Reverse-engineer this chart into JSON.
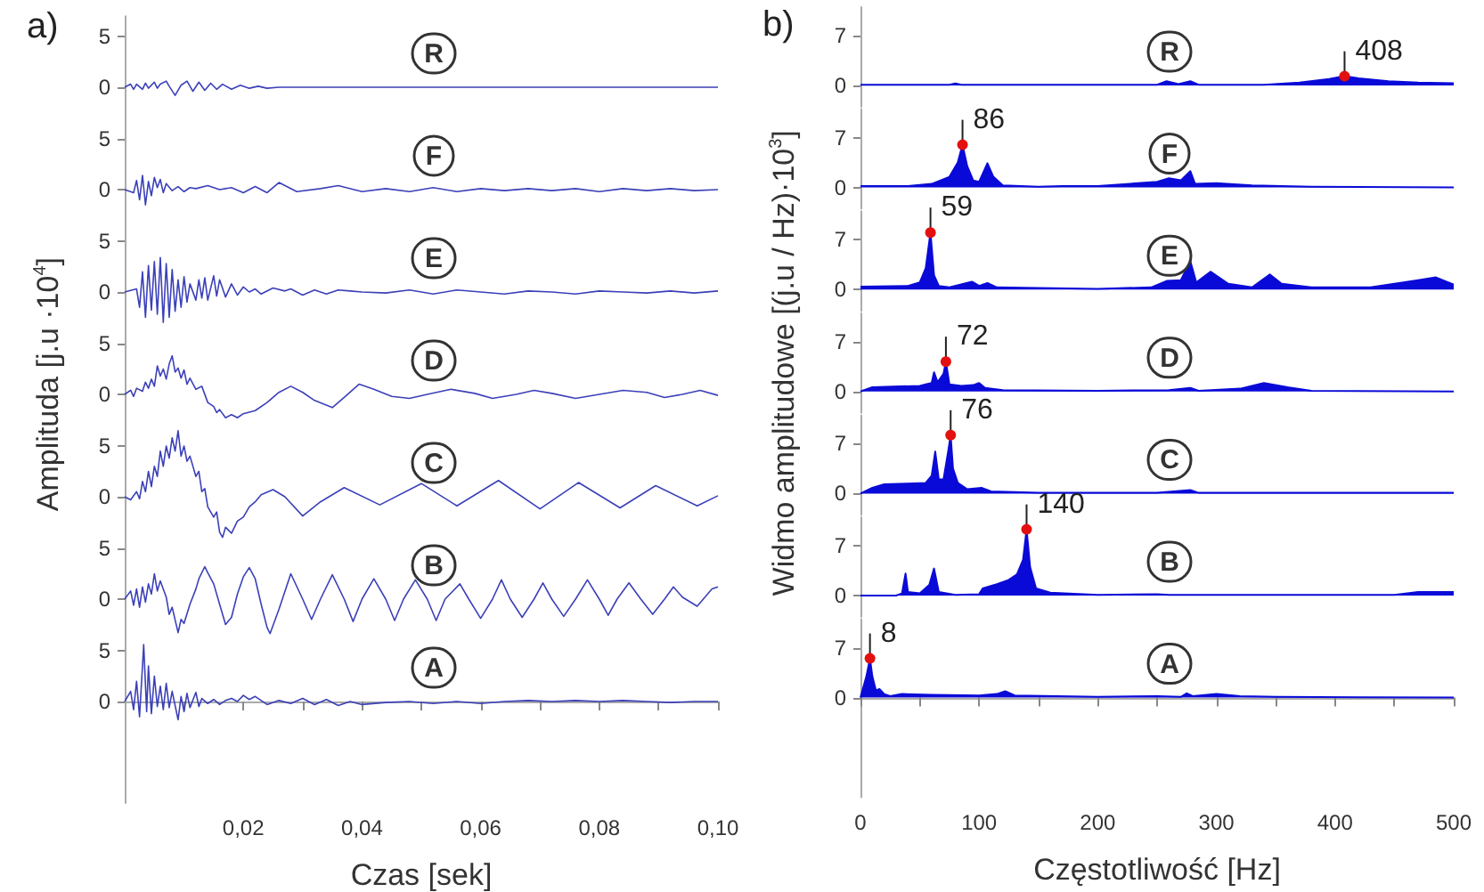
{
  "chart_data": [
    {
      "type": "line",
      "title": "R",
      "annotations": [
        "a)"
      ],
      "color": "#3b40b8",
      "xlim": [
        0,
        0.1
      ],
      "ylim": [
        -5,
        7
      ],
      "yticks": [
        0,
        5
      ],
      "tick_labels": "y",
      "x": [
        0,
        0.001,
        0.0015,
        0.002,
        0.003,
        0.0035,
        0.004,
        0.005,
        0.0055,
        0.006,
        0.007,
        0.0075,
        0.0085,
        0.0095,
        0.0105,
        0.0115,
        0.0125,
        0.0135,
        0.0145,
        0.0155,
        0.0165,
        0.018,
        0.0195,
        0.021,
        0.0225,
        0.024,
        0.026,
        0.03,
        0.035,
        0.04,
        0.05,
        0.06,
        0.07,
        0.08,
        0.09,
        0.1
      ],
      "values": [
        0,
        0.3,
        -0.2,
        0.3,
        -0.2,
        0.4,
        -0.1,
        0.5,
        -0.1,
        0.3,
        0.6,
        0.1,
        -0.8,
        0.2,
        0.6,
        -0.4,
        0.5,
        -0.3,
        0.4,
        -0.2,
        0.3,
        -0.2,
        0.2,
        -0.1,
        0.1,
        -0.1,
        0,
        0,
        0,
        0,
        0,
        0,
        0,
        0,
        0,
        0
      ]
    },
    {
      "type": "line",
      "title": "F",
      "color": "#3b40b8",
      "xlim": [
        0,
        0.1
      ],
      "ylim": [
        -5,
        7
      ],
      "yticks": [
        0,
        5
      ],
      "tick_labels": "y",
      "x": [
        0,
        0.0015,
        0.002,
        0.0025,
        0.003,
        0.0035,
        0.004,
        0.0045,
        0.005,
        0.0055,
        0.006,
        0.0065,
        0.007,
        0.008,
        0.009,
        0.01,
        0.011,
        0.012,
        0.014,
        0.016,
        0.018,
        0.02,
        0.022,
        0.024,
        0.026,
        0.029,
        0.033,
        0.036,
        0.04,
        0.044,
        0.048,
        0.052,
        0.056,
        0.06,
        0.064,
        0.068,
        0.072,
        0.076,
        0.08,
        0.084,
        0.088,
        0.092,
        0.096,
        0.1
      ],
      "values": [
        0,
        -0.3,
        0.9,
        -1.0,
        1.4,
        -1.5,
        0.8,
        -0.6,
        1.2,
        0.2,
        1.0,
        -0.3,
        0.6,
        -0.1,
        0.3,
        -0.2,
        0.2,
        0.1,
        0.4,
        0,
        0.2,
        -0.3,
        0.3,
        -0.3,
        0.7,
        -0.2,
        0.1,
        0.4,
        -0.2,
        0.1,
        -0.2,
        0.2,
        -0.2,
        0.1,
        -0.1,
        0.1,
        -0.1,
        0.1,
        -0.2,
        0.1,
        -0.1,
        0.1,
        -0.1,
        0
      ]
    },
    {
      "type": "line",
      "title": "E",
      "color": "#3b40b8",
      "xlim": [
        0,
        0.1
      ],
      "ylim": [
        -5,
        7
      ],
      "yticks": [
        0,
        5
      ],
      "tick_labels": "y",
      "x": [
        0,
        0.002,
        0.0025,
        0.003,
        0.0035,
        0.004,
        0.0045,
        0.005,
        0.0055,
        0.006,
        0.0065,
        0.007,
        0.0075,
        0.008,
        0.0085,
        0.009,
        0.0095,
        0.01,
        0.0105,
        0.011,
        0.012,
        0.0125,
        0.013,
        0.0135,
        0.014,
        0.015,
        0.0155,
        0.016,
        0.017,
        0.018,
        0.019,
        0.02,
        0.021,
        0.022,
        0.023,
        0.025,
        0.027,
        0.028,
        0.03,
        0.032,
        0.034,
        0.036,
        0.038,
        0.04,
        0.044,
        0.048,
        0.052,
        0.056,
        0.06,
        0.064,
        0.068,
        0.072,
        0.076,
        0.08,
        0.084,
        0.088,
        0.092,
        0.096,
        0.1
      ],
      "values": [
        0,
        0.3,
        -1.5,
        2.0,
        -2.5,
        2.6,
        -1.8,
        3.0,
        -2.2,
        3.4,
        -3.0,
        2.8,
        -2.5,
        2.2,
        -1.9,
        1.2,
        -1.5,
        1.5,
        -1.0,
        0.8,
        -0.8,
        1.2,
        -0.6,
        1.4,
        -0.8,
        1.6,
        -0.4,
        1.2,
        -0.5,
        0.8,
        -0.3,
        0.5,
        0,
        0.3,
        -0.2,
        0.4,
        0.1,
        0.3,
        -0.3,
        0.2,
        -0.2,
        0.2,
        0.1,
        0,
        -0.1,
        0.2,
        -0.2,
        0.2,
        0,
        -0.2,
        0.1,
        0,
        -0.2,
        0.1,
        0,
        -0.1,
        0.1,
        -0.1,
        0.1
      ]
    },
    {
      "type": "line",
      "title": "D",
      "ylabel": "Amplituda [j.u ·10$^{4}$]",
      "color": "#3b40b8",
      "xlim": [
        0,
        0.1
      ],
      "ylim": [
        -5,
        7
      ],
      "yticks": [
        0,
        5
      ],
      "tick_labels": "y",
      "x": [
        0,
        0.001,
        0.0015,
        0.002,
        0.003,
        0.0035,
        0.004,
        0.0045,
        0.005,
        0.0055,
        0.006,
        0.0065,
        0.007,
        0.0075,
        0.008,
        0.0085,
        0.009,
        0.0095,
        0.01,
        0.0105,
        0.011,
        0.012,
        0.013,
        0.014,
        0.015,
        0.0155,
        0.016,
        0.017,
        0.018,
        0.019,
        0.02,
        0.022,
        0.024,
        0.026,
        0.028,
        0.03,
        0.032,
        0.035,
        0.037,
        0.0395,
        0.042,
        0.045,
        0.048,
        0.051,
        0.055,
        0.059,
        0.062,
        0.066,
        0.069,
        0.072,
        0.076,
        0.08,
        0.084,
        0.088,
        0.091,
        0.094,
        0.097,
        0.1
      ],
      "values": [
        0,
        0.4,
        -0.2,
        0.6,
        0.3,
        1.2,
        0.6,
        1.5,
        0.8,
        2.8,
        1.8,
        2.5,
        1.5,
        3.0,
        3.8,
        2.2,
        2.6,
        1.6,
        2.4,
        1.0,
        1.6,
        0.5,
        0.8,
        -0.8,
        -1.2,
        -1.8,
        -1.5,
        -2.3,
        -2.0,
        -2.3,
        -1.9,
        -1.6,
        -0.8,
        0.2,
        0.8,
        0.2,
        -0.6,
        -1.3,
        -0.3,
        1.0,
        0.5,
        -0.2,
        -0.4,
        0,
        0.5,
        0.1,
        -0.4,
        0,
        0.4,
        0.1,
        -0.4,
        0,
        0.4,
        0.2,
        -0.3,
        0,
        0.4,
        -0.1
      ]
    },
    {
      "type": "line",
      "title": "C",
      "color": "#3b40b8",
      "xlim": [
        0,
        0.1
      ],
      "ylim": [
        -5,
        7
      ],
      "yticks": [
        0,
        5
      ],
      "tick_labels": "y",
      "x": [
        0,
        0.001,
        0.002,
        0.0025,
        0.003,
        0.0035,
        0.004,
        0.0045,
        0.005,
        0.0055,
        0.006,
        0.0065,
        0.007,
        0.0075,
        0.008,
        0.0085,
        0.009,
        0.0095,
        0.01,
        0.0105,
        0.011,
        0.012,
        0.0125,
        0.013,
        0.0135,
        0.014,
        0.015,
        0.0155,
        0.016,
        0.0165,
        0.017,
        0.018,
        0.019,
        0.02,
        0.021,
        0.022,
        0.023,
        0.025,
        0.027,
        0.03,
        0.033,
        0.037,
        0.043,
        0.05,
        0.056,
        0.063,
        0.07,
        0.0765,
        0.0835,
        0.0895,
        0.0965,
        0.1
      ],
      "values": [
        0,
        -0.3,
        0.5,
        -0.2,
        1.5,
        0.5,
        2.5,
        1.0,
        3.0,
        2.0,
        4.5,
        3.0,
        5.0,
        3.8,
        5.8,
        4.5,
        6.5,
        4.0,
        5.0,
        3.5,
        4.0,
        2.0,
        2.5,
        0.5,
        0.8,
        -1.0,
        -2.0,
        -1.5,
        -3.5,
        -4.0,
        -3.0,
        -3.6,
        -2.4,
        -2.0,
        -1.0,
        -0.5,
        0.2,
        0.7,
        0,
        -1.9,
        -0.5,
        0.9,
        -0.8,
        1.3,
        -0.9,
        1.6,
        -1.2,
        1.4,
        -1.1,
        1.1,
        -0.9,
        0.1
      ]
    },
    {
      "type": "line",
      "title": "B",
      "color": "#3b40b8",
      "xlim": [
        0,
        0.1
      ],
      "ylim": [
        -5,
        7
      ],
      "yticks": [
        0,
        5
      ],
      "tick_labels": "y",
      "x": [
        0,
        0.001,
        0.0015,
        0.002,
        0.0025,
        0.003,
        0.0035,
        0.004,
        0.0045,
        0.005,
        0.0055,
        0.006,
        0.007,
        0.0075,
        0.008,
        0.009,
        0.0095,
        0.01,
        0.011,
        0.012,
        0.0125,
        0.0135,
        0.014,
        0.015,
        0.016,
        0.017,
        0.018,
        0.019,
        0.02,
        0.021,
        0.022,
        0.023,
        0.024,
        0.0245,
        0.026,
        0.028,
        0.03,
        0.0315,
        0.033,
        0.035,
        0.037,
        0.0385,
        0.04,
        0.042,
        0.044,
        0.0455,
        0.047,
        0.049,
        0.051,
        0.0525,
        0.054,
        0.0565,
        0.058,
        0.06,
        0.062,
        0.0635,
        0.065,
        0.067,
        0.069,
        0.0705,
        0.072,
        0.074,
        0.076,
        0.078,
        0.08,
        0.0815,
        0.083,
        0.085,
        0.087,
        0.089,
        0.091,
        0.0925,
        0.094,
        0.0965,
        0.099,
        0.1
      ],
      "values": [
        0,
        0.8,
        -0.6,
        1.0,
        -0.8,
        1.2,
        -0.3,
        1.5,
        0.5,
        2.5,
        0.8,
        1.8,
        0.2,
        -1.5,
        -0.8,
        -3.3,
        -2.0,
        -2.4,
        -0.5,
        1.0,
        2.0,
        3.2,
        2.6,
        1.5,
        -0.5,
        -2.5,
        -1.8,
        0.5,
        2.2,
        3.1,
        2.0,
        -0.5,
        -2.8,
        -3.4,
        -1.0,
        2.5,
        0,
        -2.0,
        0,
        2.4,
        0,
        -2.2,
        0,
        2.0,
        0,
        -2.1,
        0,
        1.9,
        0,
        -2.1,
        0,
        1.5,
        0,
        -1.9,
        0,
        1.9,
        0,
        -1.8,
        0,
        1.6,
        0,
        -1.7,
        0,
        1.9,
        0,
        -1.6,
        0,
        1.6,
        0,
        -1.5,
        0,
        1.2,
        0.2,
        -0.7,
        1.0,
        1.2
      ]
    },
    {
      "type": "line",
      "title": "A",
      "xlabel": "Czas [sek]",
      "color": "#3b40b8",
      "xlim": [
        0,
        0.1
      ],
      "ylim": [
        -10,
        7
      ],
      "yticks": [
        0,
        5
      ],
      "xticks": [
        {
          "value": 0.01,
          "label": null
        },
        {
          "value": 0.02,
          "label": "0,02"
        },
        {
          "value": 0.03,
          "label": null
        },
        {
          "value": 0.04,
          "label": "0,04"
        },
        {
          "value": 0.05,
          "label": null
        },
        {
          "value": 0.06,
          "label": "0,06"
        },
        {
          "value": 0.07,
          "label": null
        },
        {
          "value": 0.08,
          "label": "0,08"
        },
        {
          "value": 0.09,
          "label": null
        },
        {
          "value": 0.1,
          "label": "0,10"
        }
      ],
      "x": [
        0,
        0.001,
        0.0015,
        0.002,
        0.0025,
        0.003,
        0.0032,
        0.0037,
        0.004,
        0.0045,
        0.005,
        0.0055,
        0.006,
        0.0065,
        0.007,
        0.0075,
        0.008,
        0.009,
        0.0095,
        0.01,
        0.0105,
        0.011,
        0.012,
        0.0125,
        0.013,
        0.014,
        0.015,
        0.016,
        0.017,
        0.018,
        0.019,
        0.02,
        0.021,
        0.022,
        0.024,
        0.026,
        0.028,
        0.03,
        0.032,
        0.034,
        0.036,
        0.038,
        0.04,
        0.044,
        0.048,
        0.052,
        0.056,
        0.06,
        0.064,
        0.068,
        0.072,
        0.076,
        0.08,
        0.084,
        0.088,
        0.092,
        0.096,
        0.1
      ],
      "values": [
        0,
        1.0,
        -0.8,
        2.0,
        -1.5,
        3.5,
        5.6,
        -1.0,
        3.5,
        -1.2,
        2.5,
        -0.5,
        1.5,
        -0.8,
        1.8,
        -0.6,
        1.0,
        -1.8,
        0.5,
        -1.0,
        0.8,
        -0.6,
        0.9,
        -0.5,
        0.3,
        -0.2,
        0.2,
        -0.3,
        0.1,
        0.3,
        0,
        0.6,
        0.2,
        0.5,
        -0.3,
        0.1,
        -0.2,
        0.3,
        -0.3,
        0.2,
        -0.4,
        0,
        -0.3,
        -0.1,
        0,
        -0.2,
        0,
        -0.2,
        0,
        0.1,
        0,
        0.1,
        0,
        0.1,
        0,
        -0.1,
        0,
        0
      ]
    },
    {
      "type": "area",
      "title": "R",
      "annotations": [
        "b)",
        {
          "text": "408",
          "x": 408,
          "y": 1.3
        }
      ],
      "color": "#0a0ad8",
      "xlim": [
        0,
        500
      ],
      "ylim": [
        -3,
        11
      ],
      "yticks": [
        0,
        7
      ],
      "tick_labels": "y",
      "x": [
        0,
        50,
        75,
        80,
        85,
        150,
        250,
        258,
        268,
        278,
        285,
        340,
        370,
        395,
        408,
        420,
        445,
        470,
        500
      ],
      "values": [
        0.1,
        0.1,
        0.1,
        0.3,
        0.1,
        0.1,
        0.1,
        0.6,
        0.2,
        0.6,
        0.1,
        0.1,
        0.4,
        0.9,
        1.3,
        1.0,
        0.6,
        0.4,
        0.3
      ]
    },
    {
      "type": "area",
      "title": "F",
      "annotations": [
        {
          "text": "86",
          "x": 86,
          "y": 6
        }
      ],
      "color": "#0a0ad8",
      "xlim": [
        0,
        500
      ],
      "ylim": [
        -3,
        11
      ],
      "yticks": [
        0,
        7
      ],
      "tick_labels": "y",
      "x": [
        0,
        40,
        60,
        75,
        82,
        86,
        90,
        95,
        100,
        107,
        112,
        120,
        150,
        170,
        200,
        250,
        260,
        270,
        278,
        282,
        300,
        330,
        380,
        500
      ],
      "values": [
        0.2,
        0.2,
        0.5,
        1.5,
        3.5,
        6,
        3,
        1,
        0.8,
        3.4,
        1.5,
        0.3,
        0.1,
        0.2,
        0.2,
        0.8,
        1.3,
        1.0,
        2.3,
        0.5,
        0.6,
        0.3,
        0.1,
        0
      ]
    },
    {
      "type": "area",
      "title": "E",
      "annotations": [
        {
          "text": "59",
          "x": 59,
          "y": 8
        }
      ],
      "color": "#0a0ad8",
      "xlim": [
        0,
        500
      ],
      "ylim": [
        -3,
        11
      ],
      "yticks": [
        0,
        7
      ],
      "tick_labels": "y",
      "x": [
        0,
        40,
        50,
        55,
        59,
        62,
        66,
        75,
        94,
        100,
        107,
        115,
        150,
        200,
        245,
        258,
        270,
        278,
        283,
        295,
        310,
        330,
        345,
        355,
        380,
        430,
        470,
        485,
        500
      ],
      "values": [
        0.4,
        0.5,
        1,
        3,
        8,
        2,
        0.5,
        0.3,
        1.1,
        0.5,
        0.9,
        0.3,
        0.2,
        0.1,
        0.3,
        1.2,
        1.3,
        4,
        1,
        2.5,
        0.8,
        0.3,
        2.1,
        0.8,
        0.3,
        0.3,
        1.3,
        1.7,
        0.7
      ]
    },
    {
      "type": "area",
      "title": "D",
      "ylabel": "Widmo amplitudowe [(j.u / Hz)·10$^{3}$]",
      "annotations": [
        {
          "text": "72",
          "x": 72,
          "y": 4.2
        }
      ],
      "color": "#0a0ad8",
      "xlim": [
        0,
        500
      ],
      "ylim": [
        -3,
        11
      ],
      "yticks": [
        0,
        7
      ],
      "tick_labels": "y",
      "x": [
        0,
        10,
        50,
        55,
        60,
        62,
        65,
        70,
        72,
        75,
        85,
        95,
        100,
        105,
        120,
        200,
        260,
        278,
        285,
        320,
        340,
        360,
        380,
        500
      ],
      "values": [
        0,
        0.6,
        0.8,
        1.0,
        1.2,
        2.7,
        1.3,
        2.5,
        4.2,
        1.0,
        0.8,
        0.9,
        1.2,
        0.5,
        0.2,
        0.1,
        0.2,
        0.5,
        0.1,
        0.4,
        1.2,
        0.6,
        0.1,
        0
      ]
    },
    {
      "type": "area",
      "title": "C",
      "annotations": [
        {
          "text": "76",
          "x": 76,
          "y": 8.2
        }
      ],
      "color": "#0a0ad8",
      "xlim": [
        0,
        500
      ],
      "ylim": [
        -3,
        11
      ],
      "yticks": [
        0,
        7
      ],
      "tick_labels": "y",
      "x": [
        0,
        10,
        20,
        40,
        55,
        60,
        63,
        66,
        70,
        74,
        76,
        78,
        82,
        90,
        102,
        110,
        150,
        250,
        278,
        285,
        500
      ],
      "values": [
        0,
        0.8,
        1.3,
        1.4,
        1.5,
        2.5,
        5.9,
        2.0,
        2.0,
        6,
        8.2,
        3.5,
        1.5,
        0.6,
        0.8,
        0.3,
        0.1,
        0.1,
        0.5,
        0.1,
        0.1
      ]
    },
    {
      "type": "area",
      "title": "B",
      "annotations": [
        {
          "text": "140",
          "x": 140,
          "y": 9.3
        }
      ],
      "color": "#0a0ad8",
      "xlim": [
        0,
        500
      ],
      "ylim": [
        -3,
        11
      ],
      "yticks": [
        0,
        7
      ],
      "tick_labels": "y",
      "x": [
        0,
        30,
        35,
        38,
        40,
        50,
        58,
        62,
        66,
        80,
        100,
        103,
        115,
        125,
        132,
        137,
        140,
        143,
        148,
        160,
        200,
        250,
        260,
        450,
        470,
        500
      ],
      "values": [
        0,
        0,
        0.3,
        3.1,
        0.5,
        0.3,
        1.5,
        3.8,
        0.5,
        0.1,
        0.2,
        1.0,
        1.6,
        2.2,
        3,
        5,
        9.3,
        4.0,
        1.0,
        0.4,
        0.1,
        0.2,
        0.1,
        0.1,
        0.5,
        0.5
      ]
    },
    {
      "type": "area",
      "title": "A",
      "xlabel": "Częstotliwość [Hz]",
      "annotations": [
        {
          "text": "8",
          "x": 8,
          "y": 5.5
        }
      ],
      "color": "#0a0ad8",
      "xlim": [
        0,
        500
      ],
      "ylim": [
        -14,
        11
      ],
      "yticks": [
        0,
        7
      ],
      "xticks": [
        0,
        {
          "value": 50,
          "label": null
        },
        100,
        {
          "value": 150,
          "label": null
        },
        200,
        {
          "value": 250,
          "label": null
        },
        300,
        {
          "value": 350,
          "label": null
        },
        400,
        {
          "value": 450,
          "label": null
        },
        500
      ],
      "x": [
        0,
        5,
        8,
        10,
        13,
        16,
        20,
        25,
        35,
        60,
        100,
        115,
        122,
        130,
        200,
        250,
        270,
        275,
        280,
        300,
        320,
        350,
        500
      ],
      "values": [
        0,
        3,
        5.5,
        3,
        1.0,
        1.2,
        0.5,
        0.2,
        0.5,
        0.4,
        0.3,
        0.5,
        0.9,
        0.3,
        0.1,
        0.2,
        0.1,
        0.6,
        0.2,
        0.5,
        0.2,
        0.1,
        0
      ]
    }
  ]
}
